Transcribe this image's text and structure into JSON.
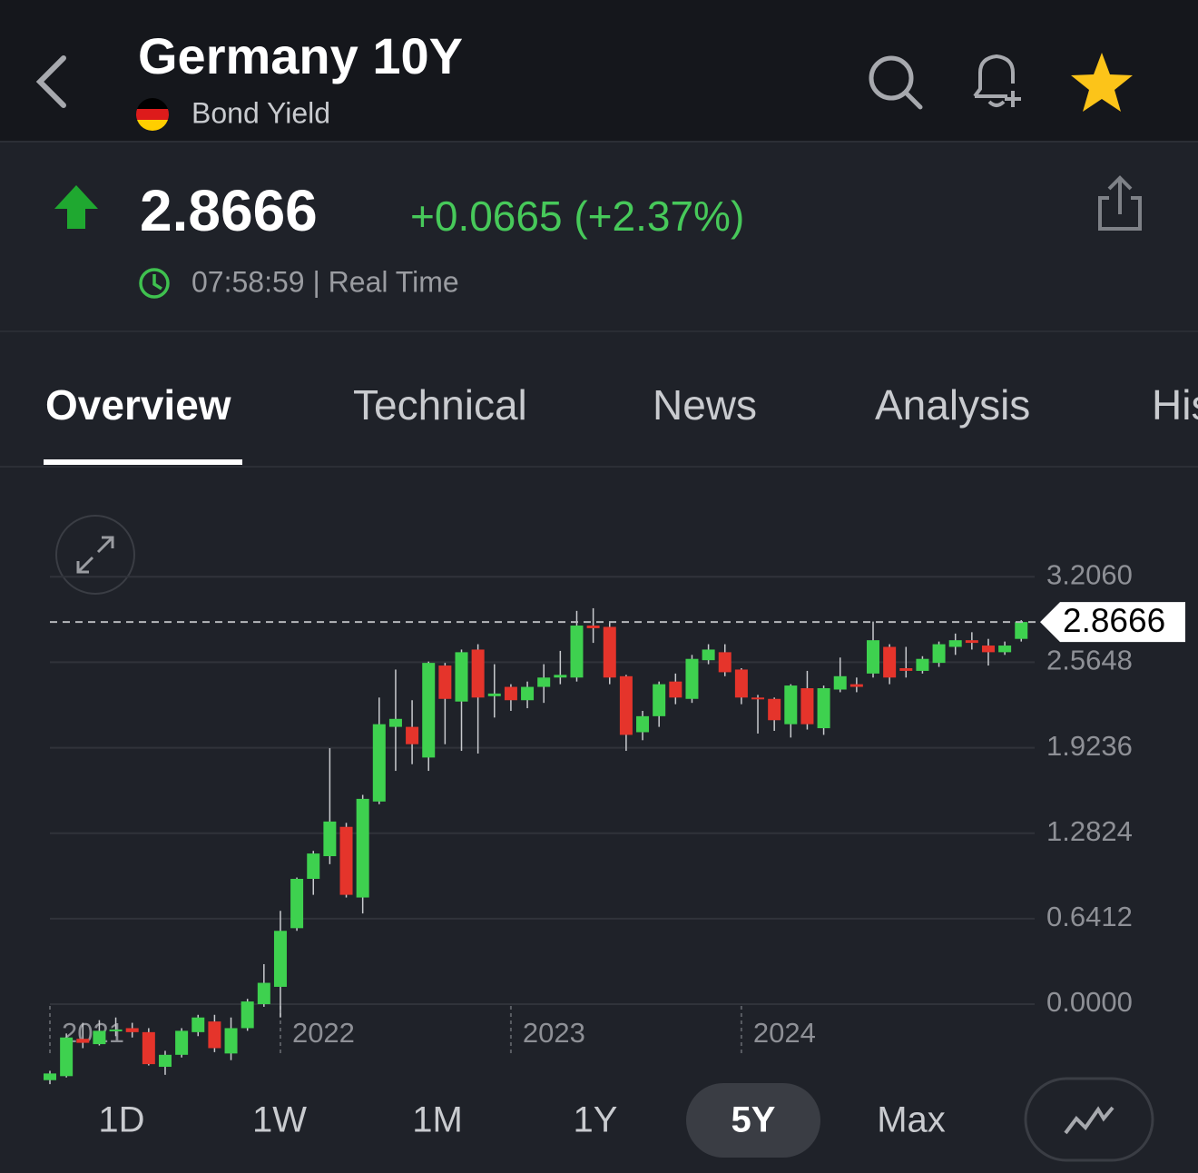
{
  "header": {
    "title": "Germany 10Y",
    "subtitle": "Bond Yield"
  },
  "quote": {
    "price": "2.8666",
    "change": "+0.0665 (+2.37%)",
    "time": "07:58:59 | Real Time"
  },
  "tabs": [
    "Overview",
    "Technical",
    "News",
    "Analysis",
    "His"
  ],
  "ranges": [
    "1D",
    "1W",
    "1M",
    "1Y",
    "5Y",
    "Max"
  ],
  "selected_range": "5Y",
  "chart_data": {
    "type": "candlestick",
    "categories": [
      "2021",
      null,
      null,
      null,
      null,
      null,
      null,
      null,
      null,
      null,
      null,
      null,
      null,
      null,
      "2022",
      null,
      null,
      null,
      null,
      null,
      null,
      null,
      null,
      null,
      null,
      null,
      null,
      null,
      "2023",
      null,
      null,
      null,
      null,
      null,
      null,
      null,
      null,
      null,
      null,
      null,
      null,
      null,
      "2024",
      null,
      null,
      null,
      null,
      null,
      null,
      null,
      null,
      null,
      null,
      null,
      null,
      null,
      null,
      null,
      null,
      null
    ],
    "open": [
      -0.57,
      -0.54,
      -0.26,
      -0.3,
      -0.2,
      -0.18,
      -0.21,
      -0.47,
      -0.38,
      -0.21,
      -0.13,
      -0.37,
      -0.18,
      0.0,
      0.13,
      0.57,
      0.94,
      1.11,
      1.33,
      0.8,
      1.52,
      2.08,
      2.08,
      1.85,
      2.54,
      2.27,
      2.66,
      2.31,
      2.38,
      2.28,
      2.38,
      2.45,
      2.45,
      2.84,
      2.83,
      2.46,
      2.04,
      2.16,
      2.42,
      2.29,
      2.58,
      2.64,
      2.51,
      2.3,
      2.29,
      2.1,
      2.37,
      2.07,
      2.36,
      2.4,
      2.48,
      2.68,
      2.52,
      2.5,
      2.56,
      2.68,
      2.73,
      2.69,
      2.64,
      2.74
    ],
    "high": [
      -0.5,
      -0.22,
      -0.14,
      -0.12,
      -0.1,
      -0.14,
      -0.18,
      -0.35,
      -0.18,
      -0.08,
      -0.08,
      -0.1,
      0.04,
      0.3,
      0.7,
      0.95,
      1.15,
      1.92,
      1.36,
      1.57,
      2.3,
      2.51,
      2.28,
      2.57,
      2.56,
      2.66,
      2.7,
      2.55,
      2.4,
      2.42,
      2.55,
      2.65,
      2.95,
      2.97,
      2.86,
      2.47,
      2.2,
      2.42,
      2.48,
      2.62,
      2.7,
      2.7,
      2.52,
      2.32,
      2.3,
      2.4,
      2.5,
      2.39,
      2.6,
      2.45,
      2.87,
      2.7,
      2.68,
      2.61,
      2.72,
      2.78,
      2.79,
      2.74,
      2.72,
      2.88
    ],
    "low": [
      -0.6,
      -0.55,
      -0.33,
      -0.31,
      -0.24,
      -0.25,
      -0.46,
      -0.53,
      -0.4,
      -0.24,
      -0.36,
      -0.42,
      -0.2,
      -0.02,
      -0.1,
      0.55,
      0.82,
      1.05,
      0.8,
      0.68,
      1.5,
      1.75,
      1.8,
      1.75,
      1.95,
      1.9,
      1.88,
      2.15,
      2.2,
      2.22,
      2.26,
      2.4,
      2.42,
      2.71,
      2.4,
      1.9,
      1.98,
      2.08,
      2.25,
      2.26,
      2.55,
      2.46,
      2.25,
      2.03,
      2.05,
      2.0,
      2.06,
      2.02,
      2.34,
      2.34,
      2.45,
      2.4,
      2.45,
      2.48,
      2.53,
      2.62,
      2.66,
      2.54,
      2.62,
      2.72
    ],
    "close": [
      -0.52,
      -0.25,
      -0.29,
      -0.2,
      -0.19,
      -0.21,
      -0.45,
      -0.38,
      -0.2,
      -0.1,
      -0.33,
      -0.18,
      0.02,
      0.16,
      0.55,
      0.94,
      1.13,
      1.37,
      0.82,
      1.54,
      2.1,
      2.14,
      1.95,
      2.56,
      2.29,
      2.64,
      2.3,
      2.33,
      2.28,
      2.38,
      2.45,
      2.47,
      2.84,
      2.82,
      2.45,
      2.02,
      2.16,
      2.4,
      2.3,
      2.59,
      2.66,
      2.49,
      2.3,
      2.29,
      2.13,
      2.39,
      2.1,
      2.37,
      2.46,
      2.38,
      2.73,
      2.45,
      2.5,
      2.59,
      2.7,
      2.73,
      2.71,
      2.64,
      2.69,
      2.8666
    ],
    "up_color": "#3ed14f",
    "down_color": "#e5342b",
    "ylim": [
      -0.64,
      3.31
    ],
    "yticks": [
      {
        "value": 0,
        "label": "0.0000"
      },
      {
        "value": 0.6412,
        "label": "0.6412"
      },
      {
        "value": 1.2824,
        "label": "1.2824"
      },
      {
        "value": 1.9236,
        "label": "1.9236"
      },
      {
        "value": 2.5648,
        "label": "2.5648"
      },
      {
        "value": 3.206,
        "label": "3.2060"
      }
    ],
    "grid": true,
    "current": 2.8666
  }
}
